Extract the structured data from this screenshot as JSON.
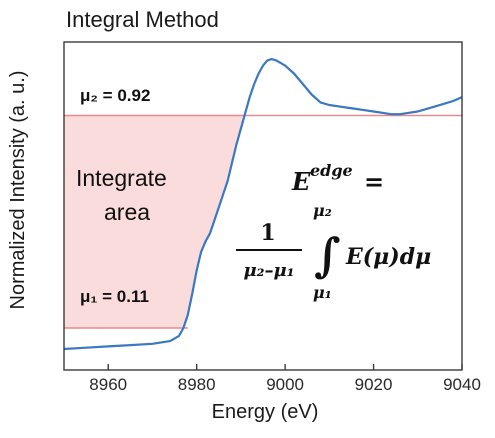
{
  "chart_data": {
    "type": "line",
    "title": "Integral Method",
    "xlabel": "Energy (eV)",
    "ylabel": "Normalized Intensity (a. u.)",
    "xlim": [
      8950,
      9040
    ],
    "ylim": [
      -0.05,
      1.2
    ],
    "xticks": [
      "8960",
      "8980",
      "9000",
      "9020",
      "9040"
    ],
    "xtick_values": [
      8960,
      8980,
      9000,
      9020,
      9040
    ],
    "series": [
      {
        "color": "#3a78c2",
        "x": [
          8950,
          8955,
          8960,
          8965,
          8970,
          8974,
          8976,
          8977,
          8978,
          8979,
          8980,
          8981,
          8982,
          8983,
          8984,
          8985,
          8986,
          8987,
          8988,
          8989,
          8990,
          8991,
          8992,
          8993,
          8994,
          8995,
          8996,
          8997,
          8998,
          9000,
          9002,
          9004,
          9006,
          9008,
          9010,
          9012,
          9014,
          9016,
          9018,
          9020,
          9022,
          9024,
          9026,
          9028,
          9030,
          9032,
          9034,
          9036,
          9038,
          9040
        ],
        "y": [
          0.03,
          0.035,
          0.04,
          0.045,
          0.05,
          0.06,
          0.08,
          0.11,
          0.16,
          0.24,
          0.33,
          0.4,
          0.44,
          0.47,
          0.52,
          0.57,
          0.62,
          0.67,
          0.74,
          0.81,
          0.87,
          0.93,
          0.99,
          1.04,
          1.08,
          1.11,
          1.13,
          1.135,
          1.13,
          1.11,
          1.08,
          1.04,
          1.0,
          0.97,
          0.96,
          0.955,
          0.95,
          0.945,
          0.94,
          0.935,
          0.93,
          0.925,
          0.925,
          0.93,
          0.935,
          0.945,
          0.955,
          0.965,
          0.975,
          0.99
        ]
      }
    ],
    "annotations": {
      "mu2": {
        "label": "μ₂ = 0.92",
        "value": 0.92,
        "line_color": "#e8898c"
      },
      "mu1": {
        "label": "μ₁ = 0.11",
        "value": 0.11,
        "line_color": "#e8898c"
      },
      "area": {
        "label_line1": "Integrate",
        "label_line2": "area",
        "fill_color": "#fbdcdd"
      },
      "equation": {
        "lhs": "E",
        "lhs_sup": "edge",
        "equals": "=",
        "numerator": "1",
        "denominator": "μ₂–μ₁",
        "upper_limit": "μ₂",
        "lower_limit": "μ₁",
        "integral_sign": "∫",
        "integrand": "E(μ)dμ"
      }
    },
    "grid": false
  }
}
